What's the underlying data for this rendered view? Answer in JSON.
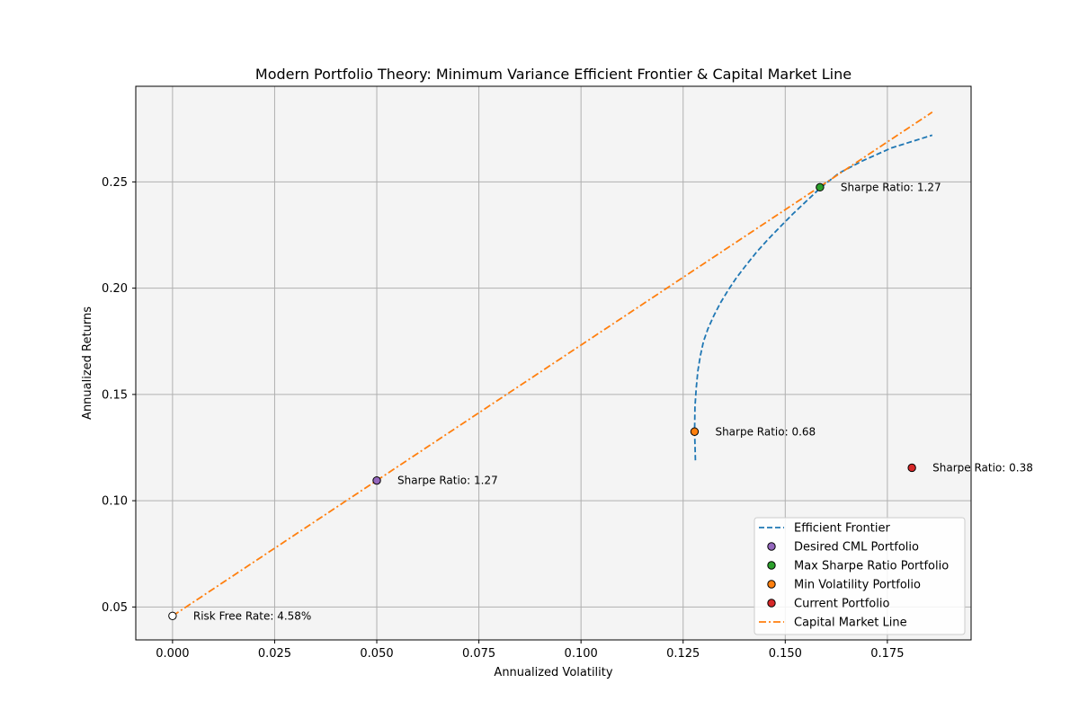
{
  "chart_data": {
    "type": "line",
    "title": "Modern Portfolio Theory: Minimum Variance Efficient Frontier & Capital Market Line",
    "xlabel": "Annualized Volatility",
    "ylabel": "Annualized Returns",
    "xlim": [
      -0.009,
      0.1955
    ],
    "ylim": [
      0.0345,
      0.295
    ],
    "xticks": [
      0.0,
      0.025,
      0.05,
      0.075,
      0.1,
      0.125,
      0.15,
      0.175
    ],
    "xtick_labels": [
      "0.000",
      "0.025",
      "0.050",
      "0.075",
      "0.100",
      "0.125",
      "0.150",
      "0.175"
    ],
    "yticks": [
      0.05,
      0.1,
      0.15,
      0.2,
      0.25
    ],
    "ytick_labels": [
      "0.05",
      "0.10",
      "0.15",
      "0.20",
      "0.25"
    ],
    "grid": true,
    "background": "#f4f4f4",
    "legend_position": "lower-right",
    "series": [
      {
        "name": "Efficient Frontier",
        "kind": "line",
        "style": "dashed",
        "color": "#1f77b4",
        "x": [
          0.128,
          0.1278,
          0.1279,
          0.1282,
          0.1286,
          0.1292,
          0.13,
          0.1311,
          0.1325,
          0.1341,
          0.136,
          0.1381,
          0.1405,
          0.143,
          0.1458,
          0.1488,
          0.1519,
          0.1552,
          0.1585,
          0.163,
          0.169,
          0.176,
          0.186
        ],
        "y": [
          0.119,
          0.133,
          0.144,
          0.153,
          0.161,
          0.168,
          0.175,
          0.181,
          0.187,
          0.193,
          0.199,
          0.205,
          0.211,
          0.217,
          0.223,
          0.229,
          0.235,
          0.241,
          0.247,
          0.254,
          0.26,
          0.266,
          0.272
        ]
      },
      {
        "name": "Capital Market Line",
        "kind": "line",
        "style": "dashdot",
        "color": "#ff7f0e",
        "x": [
          0.0,
          0.186
        ],
        "y": [
          0.0458,
          0.2828
        ]
      }
    ],
    "points": [
      {
        "name": "Desired CML Portfolio",
        "x": 0.05,
        "y": 0.1095,
        "color": "#9467bd",
        "annotation": "Sharpe Ratio: 1.27"
      },
      {
        "name": "Max Sharpe Ratio Portfolio",
        "x": 0.1585,
        "y": 0.2475,
        "color": "#2ca02c",
        "annotation": "Sharpe Ratio: 1.27"
      },
      {
        "name": "Min Volatility Portfolio",
        "x": 0.1278,
        "y": 0.1325,
        "color": "#ff7f0e",
        "annotation": "Sharpe Ratio: 0.68"
      },
      {
        "name": "Current Portfolio",
        "x": 0.181,
        "y": 0.1155,
        "color": "#d62728",
        "annotation": "Sharpe Ratio: 0.38"
      },
      {
        "name": "",
        "x": 0.0,
        "y": 0.0458,
        "color": "#ffffff",
        "annotation": "Risk Free Rate: 4.58%"
      }
    ],
    "legend": [
      {
        "label": "Efficient Frontier",
        "kind": "line",
        "style": "dashed",
        "color": "#1f77b4"
      },
      {
        "label": "Desired CML Portfolio",
        "kind": "marker",
        "color": "#9467bd"
      },
      {
        "label": "Max Sharpe Ratio Portfolio",
        "kind": "marker",
        "color": "#2ca02c"
      },
      {
        "label": "Min Volatility Portfolio",
        "kind": "marker",
        "color": "#ff7f0e"
      },
      {
        "label": "Current Portfolio",
        "kind": "marker",
        "color": "#d62728"
      },
      {
        "label": "Capital Market Line",
        "kind": "line",
        "style": "dashdot",
        "color": "#ff7f0e"
      }
    ]
  }
}
